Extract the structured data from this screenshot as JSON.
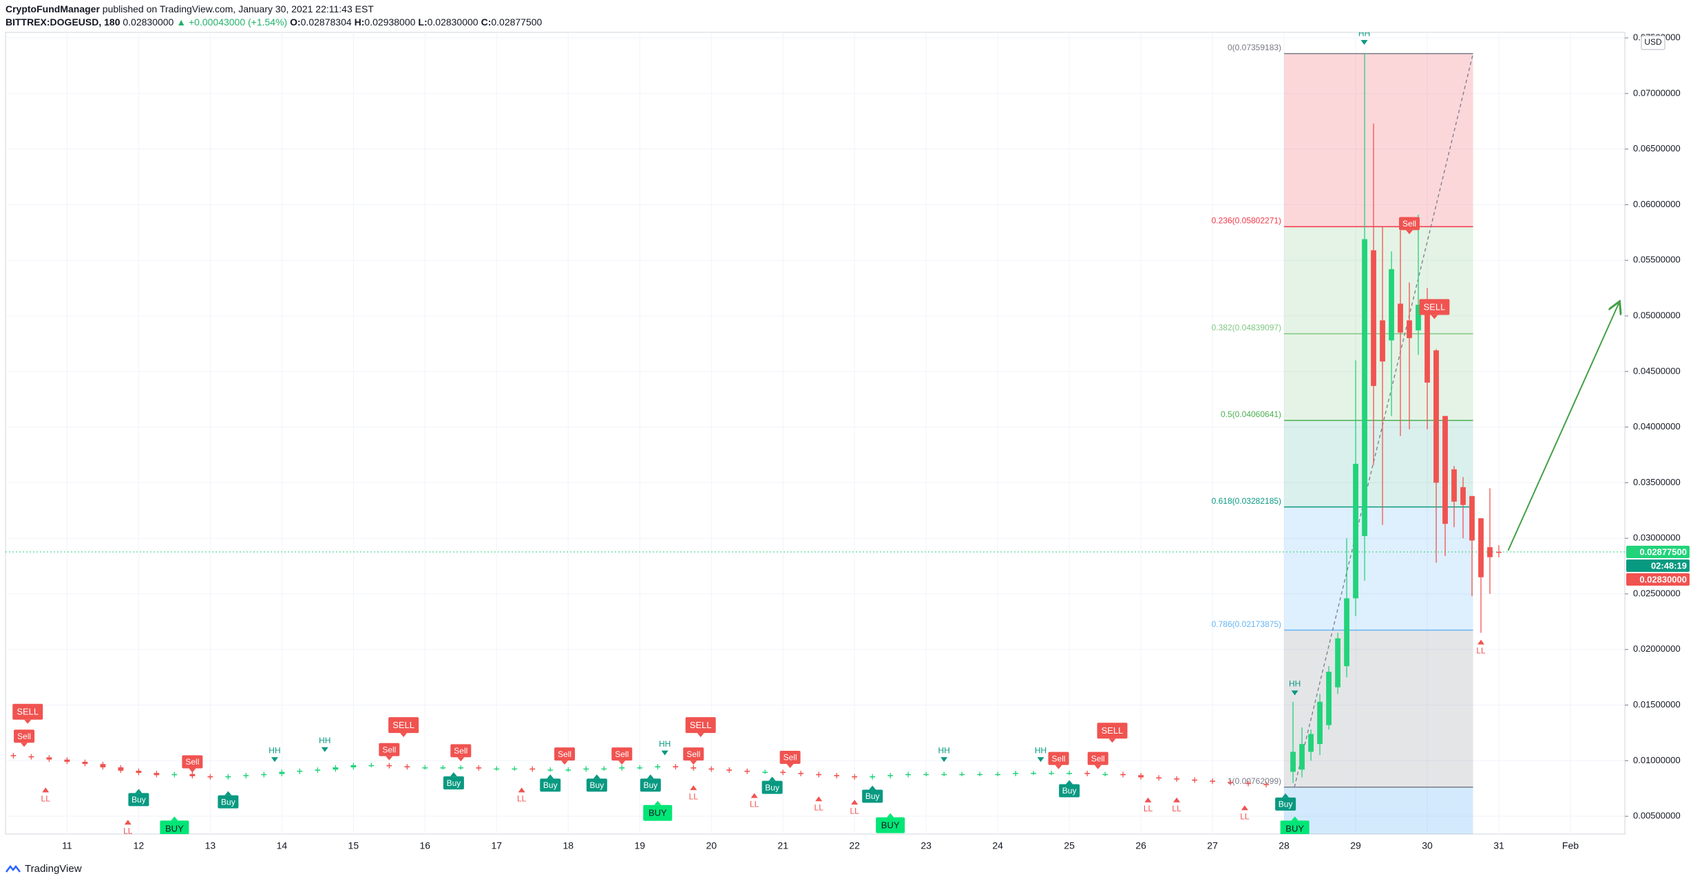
{
  "header": {
    "publisher": "CryptoFundManager",
    "published": "published on TradingView.com, January 30, 2021 22:11:43 EST",
    "symbol": "BITTREX:DOGEUSD, 180",
    "last": "0.02830000",
    "change": "▲ +0.00043000 (+1.54%)",
    "ohlc": [
      {
        "label": "O:",
        "value": "0.02878304"
      },
      {
        "label": "H:",
        "value": "0.02938000"
      },
      {
        "label": "L:",
        "value": "0.02830000"
      },
      {
        "label": "C:",
        "value": "0.02877500"
      }
    ]
  },
  "footer": {
    "brand": "TradingView"
  },
  "chart_data": {
    "type": "candlestick",
    "currency": "USD",
    "up_color": "#22d37a",
    "down_color": "#f05350",
    "grid": true,
    "xlim": [
      10.14,
      32.76
    ],
    "xticks": [
      11,
      12,
      13,
      14,
      15,
      16,
      17,
      18,
      19,
      20,
      21,
      22,
      23,
      24,
      25,
      26,
      27,
      28,
      29,
      30,
      31,
      {
        "value": 32,
        "label": "Feb"
      }
    ],
    "ylim": [
      0.0034,
      0.0755
    ],
    "yticks": [
      {
        "value": 0.005,
        "label": "0.00500000"
      },
      {
        "value": 0.01,
        "label": "0.01000000"
      },
      {
        "value": 0.015,
        "label": "0.01500000"
      },
      {
        "value": 0.02,
        "label": "0.02000000"
      },
      {
        "value": 0.025,
        "label": "0.02500000"
      },
      {
        "value": 0.03,
        "label": "0.03000000"
      },
      {
        "value": 0.035,
        "label": "0.03500000"
      },
      {
        "value": 0.04,
        "label": "0.04000000"
      },
      {
        "value": 0.045,
        "label": "0.04500000"
      },
      {
        "value": 0.05,
        "label": "0.05000000"
      },
      {
        "value": 0.055,
        "label": "0.05500000"
      },
      {
        "value": 0.06,
        "label": "0.06000000"
      },
      {
        "value": 0.065,
        "label": "0.06500000"
      },
      {
        "value": 0.07,
        "label": "0.07000000"
      },
      {
        "value": 0.075,
        "label": "0.07500000"
      }
    ],
    "x": [
      10.25,
      10.5,
      10.75,
      11,
      11.25,
      11.5,
      11.75,
      12,
      12.25,
      12.5,
      12.75,
      13,
      13.25,
      13.5,
      13.75,
      14,
      14.25,
      14.5,
      14.75,
      15,
      15.25,
      15.5,
      15.75,
      16,
      16.25,
      16.5,
      16.75,
      17,
      17.25,
      17.5,
      17.75,
      18,
      18.25,
      18.5,
      18.75,
      19,
      19.25,
      19.5,
      19.75,
      20,
      20.25,
      20.5,
      20.75,
      21,
      21.25,
      21.5,
      21.75,
      22,
      22.25,
      22.5,
      22.75,
      23,
      23.25,
      23.5,
      23.75,
      24,
      24.25,
      24.5,
      24.75,
      25,
      25.25,
      25.5,
      25.75,
      26,
      26.25,
      26.5,
      26.75,
      27,
      27.25,
      27.5,
      27.75,
      28.125,
      28.25,
      28.375,
      28.5,
      28.625,
      28.75,
      28.875,
      29,
      29.125,
      29.25,
      29.375,
      29.5,
      29.625,
      29.75,
      29.875,
      30,
      30.125,
      30.25,
      30.375,
      30.5,
      30.625,
      30.75,
      30.875,
      31
    ],
    "open": [
      0.0105,
      0.0104,
      0.0103,
      0.0101,
      0.0099,
      0.0097,
      0.0094,
      0.0091,
      0.0089,
      0.0087,
      0.0088,
      0.0086,
      0.0085,
      0.0086,
      0.0087,
      0.0088,
      0.009,
      0.0091,
      0.0092,
      0.0094,
      0.0096,
      0.0096,
      0.0095,
      0.0094,
      0.0094,
      0.0094,
      0.0094,
      0.0093,
      0.0093,
      0.0093,
      0.0092,
      0.0092,
      0.0092,
      0.0093,
      0.0093,
      0.0094,
      0.0094,
      0.0095,
      0.0094,
      0.0093,
      0.0092,
      0.0091,
      0.009,
      0.009,
      0.0089,
      0.0088,
      0.0087,
      0.0086,
      0.0085,
      0.0086,
      0.0087,
      0.0088,
      0.0088,
      0.0088,
      0.0088,
      0.0088,
      0.0088,
      0.0089,
      0.0089,
      0.0089,
      0.0089,
      0.0088,
      0.0088,
      0.0087,
      0.0085,
      0.0084,
      0.0083,
      0.0082,
      0.0081,
      0.008,
      0.0079,
      0.009,
      0.0092,
      0.0108,
      0.0115,
      0.0132,
      0.0166,
      0.0185,
      0.0246,
      0.0302,
      0.0559,
      0.0496,
      0.0478,
      0.0511,
      0.0496,
      0.0487,
      0.0501,
      0.0469,
      0.041,
      0.0362,
      0.0346,
      0.0338,
      0.0318,
      0.0292,
      0.02878304
    ],
    "high": [
      0.0107,
      0.0106,
      0.0105,
      0.0103,
      0.0101,
      0.0099,
      0.0096,
      0.0093,
      0.0091,
      0.009,
      0.009,
      0.0088,
      0.0088,
      0.0089,
      0.009,
      0.0092,
      0.0093,
      0.0094,
      0.0096,
      0.0098,
      0.0098,
      0.0098,
      0.0097,
      0.0096,
      0.0096,
      0.0096,
      0.0096,
      0.0095,
      0.0095,
      0.0095,
      0.0094,
      0.0094,
      0.0095,
      0.0095,
      0.0096,
      0.0096,
      0.0097,
      0.0097,
      0.0096,
      0.0095,
      0.0094,
      0.0093,
      0.0092,
      0.0092,
      0.0091,
      0.009,
      0.0089,
      0.0088,
      0.0088,
      0.0089,
      0.009,
      0.009,
      0.009,
      0.009,
      0.009,
      0.009,
      0.0091,
      0.0091,
      0.0091,
      0.0091,
      0.0091,
      0.009,
      0.009,
      0.0089,
      0.0087,
      0.0086,
      0.0085,
      0.0084,
      0.0083,
      0.0082,
      0.0081,
      0.0153,
      0.013,
      0.0128,
      0.016,
      0.0185,
      0.0215,
      0.03,
      0.046,
      0.0736,
      0.0673,
      0.058,
      0.0558,
      0.0577,
      0.053,
      0.0591,
      0.0525,
      0.047,
      0.041,
      0.0365,
      0.0355,
      0.0338,
      0.0318,
      0.0345,
      0.02938
    ],
    "low": [
      0.0102,
      0.0101,
      0.0099,
      0.0097,
      0.0095,
      0.0092,
      0.0089,
      0.0087,
      0.0085,
      0.0085,
      0.0084,
      0.0083,
      0.0083,
      0.0084,
      0.0085,
      0.0086,
      0.0088,
      0.0089,
      0.009,
      0.0092,
      0.0094,
      0.0093,
      0.0092,
      0.0092,
      0.0092,
      0.0092,
      0.0091,
      0.0091,
      0.0091,
      0.009,
      0.009,
      0.009,
      0.009,
      0.0091,
      0.0091,
      0.0092,
      0.0092,
      0.0092,
      0.0091,
      0.009,
      0.0089,
      0.0088,
      0.0088,
      0.0087,
      0.0086,
      0.0085,
      0.0084,
      0.0083,
      0.0083,
      0.0084,
      0.0085,
      0.0086,
      0.0086,
      0.0086,
      0.0086,
      0.0086,
      0.0086,
      0.0087,
      0.0087,
      0.0087,
      0.0086,
      0.0086,
      0.0085,
      0.0083,
      0.0082,
      0.0081,
      0.008,
      0.0079,
      0.0078,
      0.0077,
      0.0076,
      0.008,
      0.0085,
      0.01,
      0.0105,
      0.0128,
      0.016,
      0.0175,
      0.023,
      0.0262,
      0.0366,
      0.0312,
      0.041,
      0.0392,
      0.0398,
      0.0465,
      0.0398,
      0.0278,
      0.0284,
      0.031,
      0.03,
      0.0248,
      0.0215,
      0.025,
      0.0283
    ],
    "close": [
      0.0104,
      0.0103,
      0.0101,
      0.0099,
      0.0097,
      0.0094,
      0.0091,
      0.0089,
      0.0087,
      0.0088,
      0.0086,
      0.0085,
      0.0086,
      0.0087,
      0.0088,
      0.009,
      0.0091,
      0.0092,
      0.0094,
      0.0096,
      0.0096,
      0.0095,
      0.0094,
      0.0094,
      0.0094,
      0.0094,
      0.0093,
      0.0093,
      0.0093,
      0.0092,
      0.0092,
      0.0092,
      0.0093,
      0.0093,
      0.0094,
      0.0094,
      0.0095,
      0.0094,
      0.0093,
      0.0092,
      0.0091,
      0.009,
      0.009,
      0.0089,
      0.0088,
      0.0087,
      0.0086,
      0.0085,
      0.0086,
      0.0087,
      0.0088,
      0.0088,
      0.0088,
      0.0088,
      0.0088,
      0.0088,
      0.0089,
      0.0089,
      0.0089,
      0.0089,
      0.0088,
      0.0088,
      0.0087,
      0.0085,
      0.0084,
      0.0083,
      0.0082,
      0.0081,
      0.008,
      0.0079,
      0.0078,
      0.0108,
      0.0115,
      0.0124,
      0.0153,
      0.018,
      0.021,
      0.0246,
      0.0367,
      0.0569,
      0.0437,
      0.0459,
      0.0542,
      0.0485,
      0.048,
      0.051,
      0.044,
      0.035,
      0.0313,
      0.0333,
      0.033,
      0.0298,
      0.0265,
      0.0283,
      0.028775
    ],
    "fib_x": [
      28.0,
      30.64
    ],
    "fib_levels": [
      {
        "price": 0.07359183,
        "label": "0(0.07359183)",
        "color": "#787b86",
        "fill": "rgba(242,54,69,0.2)"
      },
      {
        "price": 0.05802271,
        "label": "0.236(0.05802271)",
        "color": "#f23645",
        "fill": "rgba(76,175,80,0.15)"
      },
      {
        "price": 0.04839097,
        "label": "0.382(0.04839097)",
        "color": "#81c784",
        "fill": "rgba(76,175,80,0.15)"
      },
      {
        "price": 0.04060641,
        "label": "0.5(0.04060641)",
        "color": "#4caf50",
        "fill": "rgba(8,153,129,0.15)"
      },
      {
        "price": 0.03282185,
        "label": "0.618(0.03282185)",
        "color": "#089981",
        "fill": "rgba(33,150,243,0.15)"
      },
      {
        "price": 0.02173875,
        "label": "0.786(0.02173875)",
        "color": "#64b5f6",
        "fill": "rgba(120,123,134,0.2)"
      },
      {
        "price": 0.00762099,
        "label": "1(0.00762099)",
        "color": "#787b86",
        "fill": "rgba(33,150,243,0.2)"
      }
    ],
    "arrow": {
      "x": [
        31.13,
        32.68
      ],
      "y": [
        0.0289,
        0.0512
      ],
      "color": "#43a047"
    },
    "signals": [
      {
        "x": 10.45,
        "price": 0.0144,
        "label": "SELL"
      },
      {
        "x": 10.4,
        "price": 0.0122,
        "label": "Sell"
      },
      {
        "x": 10.7,
        "price": 0.0074,
        "label": "LL"
      },
      {
        "x": 11.85,
        "price": 0.0045,
        "label": "LL"
      },
      {
        "x": 12.0,
        "price": 0.0065,
        "label": "Buy"
      },
      {
        "x": 12.5,
        "price": 0.0039,
        "label": "BUY"
      },
      {
        "x": 12.75,
        "price": 0.0099,
        "label": "Sell"
      },
      {
        "x": 13.25,
        "price": 0.0063,
        "label": "Buy"
      },
      {
        "x": 13.9,
        "price": 0.0105,
        "label": "HH"
      },
      {
        "x": 14.6,
        "price": 0.0114,
        "label": "HH"
      },
      {
        "x": 15.5,
        "price": 0.011,
        "label": "Sell"
      },
      {
        "x": 15.7,
        "price": 0.0132,
        "label": "SELL"
      },
      {
        "x": 16.5,
        "price": 0.0109,
        "label": "Sell"
      },
      {
        "x": 16.4,
        "price": 0.008,
        "label": "Buy"
      },
      {
        "x": 17.35,
        "price": 0.0074,
        "label": "LL"
      },
      {
        "x": 17.75,
        "price": 0.0078,
        "label": "Buy"
      },
      {
        "x": 17.95,
        "price": 0.0106,
        "label": "Sell"
      },
      {
        "x": 18.4,
        "price": 0.0078,
        "label": "Buy"
      },
      {
        "x": 18.75,
        "price": 0.0106,
        "label": "Sell"
      },
      {
        "x": 19.15,
        "price": 0.0078,
        "label": "Buy"
      },
      {
        "x": 19.25,
        "price": 0.0053,
        "label": "BUY"
      },
      {
        "x": 19.35,
        "price": 0.0111,
        "label": "HH"
      },
      {
        "x": 19.75,
        "price": 0.0106,
        "label": "Sell"
      },
      {
        "x": 19.85,
        "price": 0.0132,
        "label": "SELL"
      },
      {
        "x": 19.75,
        "price": 0.0076,
        "label": "LL"
      },
      {
        "x": 20.6,
        "price": 0.0069,
        "label": "LL"
      },
      {
        "x": 20.85,
        "price": 0.0076,
        "label": "Buy"
      },
      {
        "x": 21.1,
        "price": 0.0103,
        "label": "Sell"
      },
      {
        "x": 21.5,
        "price": 0.0066,
        "label": "LL"
      },
      {
        "x": 22.0,
        "price": 0.0063,
        "label": "LL"
      },
      {
        "x": 22.25,
        "price": 0.0068,
        "label": "Buy"
      },
      {
        "x": 22.5,
        "price": 0.0042,
        "label": "BUY"
      },
      {
        "x": 23.25,
        "price": 0.0105,
        "label": "HH"
      },
      {
        "x": 24.6,
        "price": 0.0105,
        "label": "HH"
      },
      {
        "x": 24.85,
        "price": 0.0102,
        "label": "Sell"
      },
      {
        "x": 25.0,
        "price": 0.0073,
        "label": "Buy"
      },
      {
        "x": 25.4,
        "price": 0.0102,
        "label": "Sell"
      },
      {
        "x": 25.6,
        "price": 0.0127,
        "label": "SELL"
      },
      {
        "x": 26.1,
        "price": 0.0065,
        "label": "LL"
      },
      {
        "x": 26.5,
        "price": 0.0065,
        "label": "LL"
      },
      {
        "x": 27.45,
        "price": 0.0058,
        "label": "LL"
      },
      {
        "x": 28.02,
        "price": 0.0061,
        "label": "Buy"
      },
      {
        "x": 28.15,
        "price": 0.0039,
        "label": "BUY"
      },
      {
        "x": 28.15,
        "price": 0.0165,
        "label": "HH"
      },
      {
        "x": 29.12,
        "price": 0.075,
        "label": "HH"
      },
      {
        "x": 29.75,
        "price": 0.0583,
        "label": "Sell"
      },
      {
        "x": 30.1,
        "price": 0.0508,
        "label": "SELL"
      },
      {
        "x": 30.75,
        "price": 0.0207,
        "label": "LL"
      }
    ],
    "price_tags": [
      {
        "label": "0.02877500",
        "color": "#22d37a"
      },
      {
        "label": "02:48:19",
        "color": "#089981"
      },
      {
        "label": "0.02830000",
        "color": "#f05350"
      }
    ]
  }
}
